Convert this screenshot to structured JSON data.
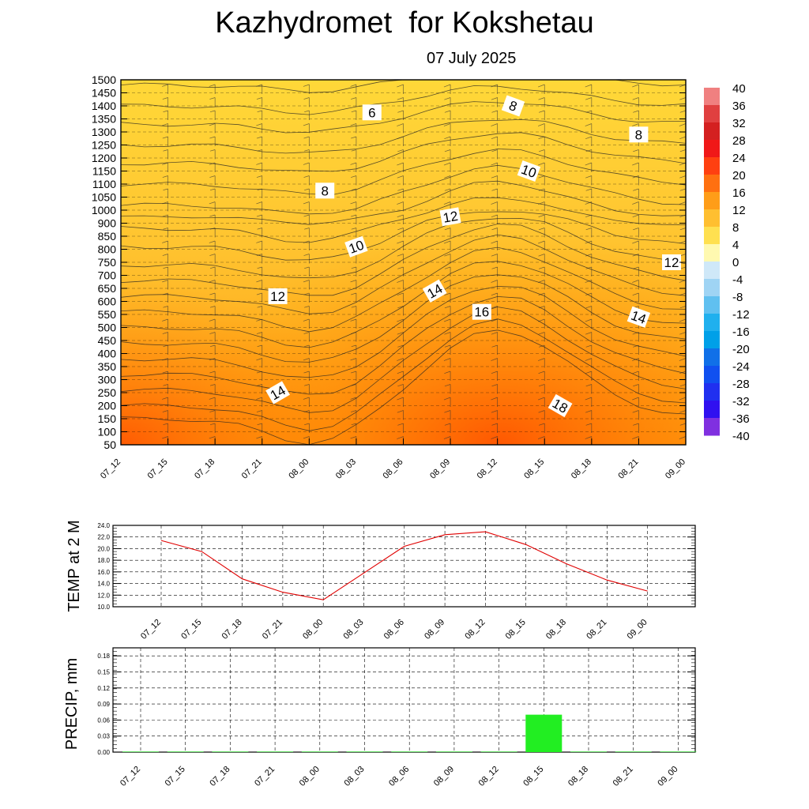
{
  "title": "Kazhydromet  for Kokshetau",
  "subtitle": "07 July 2025",
  "time_labels": [
    "07_12",
    "07_15",
    "07_18",
    "07_21",
    "08_00",
    "08_03",
    "08_06",
    "08_09",
    "08_12",
    "08_15",
    "08_18",
    "08_21",
    "09_00"
  ],
  "chart_data": [
    {
      "type": "heatmap",
      "description_kind": "time-height cross-section of temperature (filled contours) with contour labels and wind barbs",
      "x": [
        "07_12",
        "07_15",
        "07_18",
        "07_21",
        "08_00",
        "08_03",
        "08_06",
        "08_09",
        "08_12",
        "08_15",
        "08_18",
        "08_21",
        "09_00"
      ],
      "y_ticks": [
        50,
        100,
        150,
        200,
        250,
        300,
        350,
        400,
        450,
        500,
        550,
        600,
        650,
        700,
        750,
        800,
        850,
        900,
        1000,
        1050,
        1100,
        1150,
        1200,
        1250,
        1300,
        1350,
        1400,
        1450,
        1500
      ],
      "ylabel": "",
      "colorbar": {
        "ticks": [
          40,
          36,
          32,
          28,
          24,
          20,
          16,
          12,
          8,
          4,
          0,
          -4,
          -8,
          -12,
          -16,
          -20,
          -24,
          -28,
          -32,
          -36,
          -40
        ],
        "range": [
          -40,
          40
        ]
      },
      "contour_labels": [
        {
          "value": "6",
          "time": "08_04",
          "height": 1375
        },
        {
          "value": "8",
          "time": "08_13",
          "height": 1400
        },
        {
          "value": "8",
          "time": "08_21",
          "height": 1290
        },
        {
          "value": "10",
          "time": "08_14",
          "height": 1150
        },
        {
          "value": "8",
          "time": "08_01",
          "height": 1075
        },
        {
          "value": "12",
          "time": "08_09",
          "height": 950
        },
        {
          "value": "10",
          "time": "08_03",
          "height": 810
        },
        {
          "value": "12",
          "time": "09_00",
          "height": 750
        },
        {
          "value": "14",
          "time": "08_08",
          "height": 640
        },
        {
          "value": "12",
          "time": "07_22",
          "height": 620
        },
        {
          "value": "16",
          "time": "08_11",
          "height": 560
        },
        {
          "value": "14",
          "time": "08_21",
          "height": 540
        },
        {
          "value": "14",
          "time": "07_22",
          "height": 250
        },
        {
          "value": "18",
          "time": "08_16",
          "height": 200
        }
      ]
    },
    {
      "type": "line",
      "ylabel": "TEMP at 2 M",
      "x": [
        "07_12",
        "07_15",
        "07_18",
        "07_21",
        "08_00",
        "08_03",
        "08_06",
        "08_09",
        "08_12",
        "08_15",
        "08_18",
        "08_21",
        "09_00"
      ],
      "series": [
        {
          "values": [
            21.4,
            19.5,
            14.8,
            12.5,
            11.2,
            15.8,
            20.4,
            22.4,
            22.9,
            20.7,
            17.4,
            14.6,
            12.7
          ],
          "color": "#e00000"
        }
      ],
      "ylim": [
        10.0,
        24.0
      ],
      "y_ticks": [
        "10.0",
        "12.0",
        "14.0",
        "16.0",
        "18.0",
        "20.0",
        "22.0",
        "24.0"
      ],
      "grid": true
    },
    {
      "type": "bar",
      "ylabel": "PRECIP, mm",
      "categories": [
        "07_12",
        "07_15",
        "07_18",
        "07_21",
        "08_00",
        "08_03",
        "08_06",
        "08_09",
        "08_12",
        "08_15",
        "08_18",
        "08_21",
        "09_00"
      ],
      "values": [
        0,
        0,
        0,
        0,
        0,
        0,
        0,
        0,
        0,
        0.07,
        0,
        0,
        0
      ],
      "color": "#22ee22",
      "ylim": [
        0,
        0.195
      ],
      "y_ticks": [
        "0.00",
        "0.03",
        "0.06",
        "0.09",
        "0.12",
        "0.15",
        "0.18"
      ],
      "grid": true
    }
  ]
}
